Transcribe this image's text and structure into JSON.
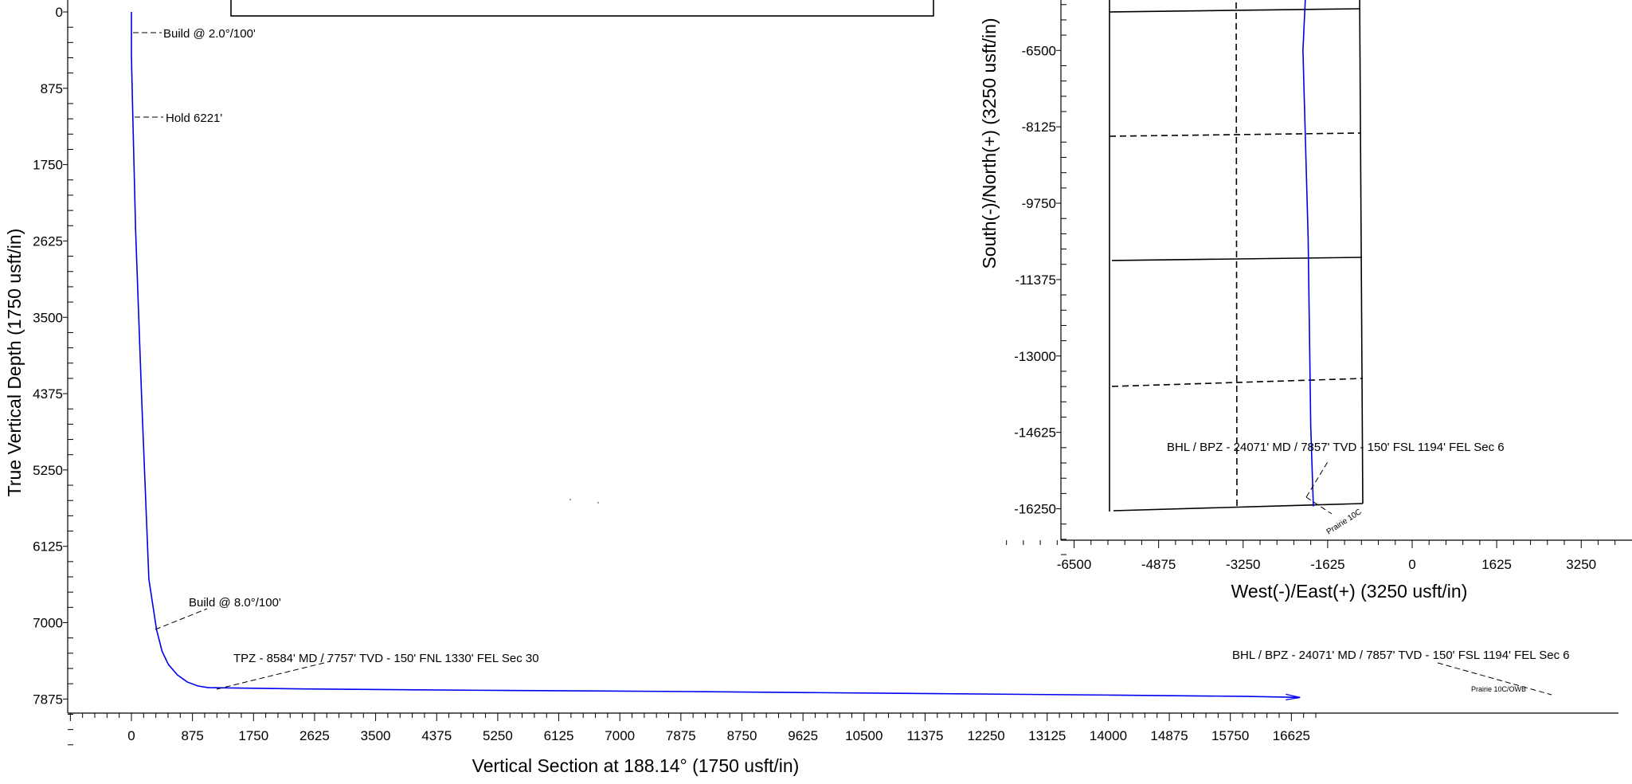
{
  "chart_data": [
    {
      "type": "line",
      "xlabel": "Vertical Section at 188.14° (1750 usft/in)",
      "ylabel": "True Vertical Depth (1750 usft/in)",
      "xlim": [
        -300,
        17450
      ],
      "ylim": [
        0,
        8450
      ],
      "x_ticks": [
        "0",
        "875",
        "1750",
        "2625",
        "3500",
        "4375",
        "5250",
        "6125",
        "7000",
        "7875",
        "8750",
        "9625",
        "10500",
        "11375",
        "12250",
        "13125",
        "14000",
        "14875",
        "15750",
        "16625"
      ],
      "y_ticks": [
        "0",
        "875",
        "1750",
        "2625",
        "3500",
        "4375",
        "5250",
        "6125",
        "7000",
        "7875"
      ],
      "series": [
        {
          "color": "#0000ee",
          "x": [
            0,
            0,
            20,
            60,
            150,
            250,
            360,
            440,
            530,
            660,
            800,
            950,
            1100,
            2500,
            5000,
            8000,
            11000,
            14000,
            16000,
            16750
          ],
          "y": [
            0,
            500,
            1200,
            2500,
            4500,
            6500,
            7080,
            7330,
            7480,
            7600,
            7680,
            7725,
            7745,
            7760,
            7775,
            7790,
            7810,
            7830,
            7845,
            7857
          ]
        }
      ],
      "annotations": [
        {
          "text": "Build @ 2.0°/100'",
          "x": 0,
          "y": 240
        },
        {
          "text": "Hold 6221'",
          "x": 20,
          "y": 1200
        },
        {
          "text": "Build @ 8.0°/100'",
          "x": 270,
          "y": 7010
        },
        {
          "text": "TPZ - 8584' MD / 7757' TVD - 150' FNL 1330' FEL Sec 30",
          "x": 1000,
          "y": 7757
        },
        {
          "text": "BHL / BPZ - 24071' MD /  7857' TVD - 150' FSL 1194' FEL Sec 6",
          "x": 16750,
          "y": 7857
        },
        {
          "text": "Prairie  10C/OWB",
          "x": 16400,
          "y": 7840
        }
      ]
    },
    {
      "type": "line",
      "xlabel": "West(-)/East(+) (3250 usft/in)",
      "ylabel": "South(-)/North(+) (3250 usft/in)",
      "x_ticks": [
        "-6500",
        "-4875",
        "-3250",
        "-1625",
        "0",
        "1625",
        "3250"
      ],
      "y_ticks": [
        "-6500",
        "-8125",
        "-9750",
        "-11375",
        "-13000",
        "-14625",
        "-16250"
      ],
      "series": [
        {
          "color": "#0000ee",
          "x": [
            -2000,
            -2100,
            -2000,
            -1950,
            -1900
          ],
          "y": [
            -4100,
            -6500,
            -10500,
            -14500,
            -16200
          ]
        }
      ],
      "annotations": [
        {
          "text": "BHL / BPZ - 24071' MD /  7857' TVD - 150' FSL 1194' FEL Sec 6",
          "x": -1900,
          "y": -16200
        },
        {
          "text": "Prairie  10C",
          "x": -1900,
          "y": -16200
        }
      ]
    }
  ]
}
